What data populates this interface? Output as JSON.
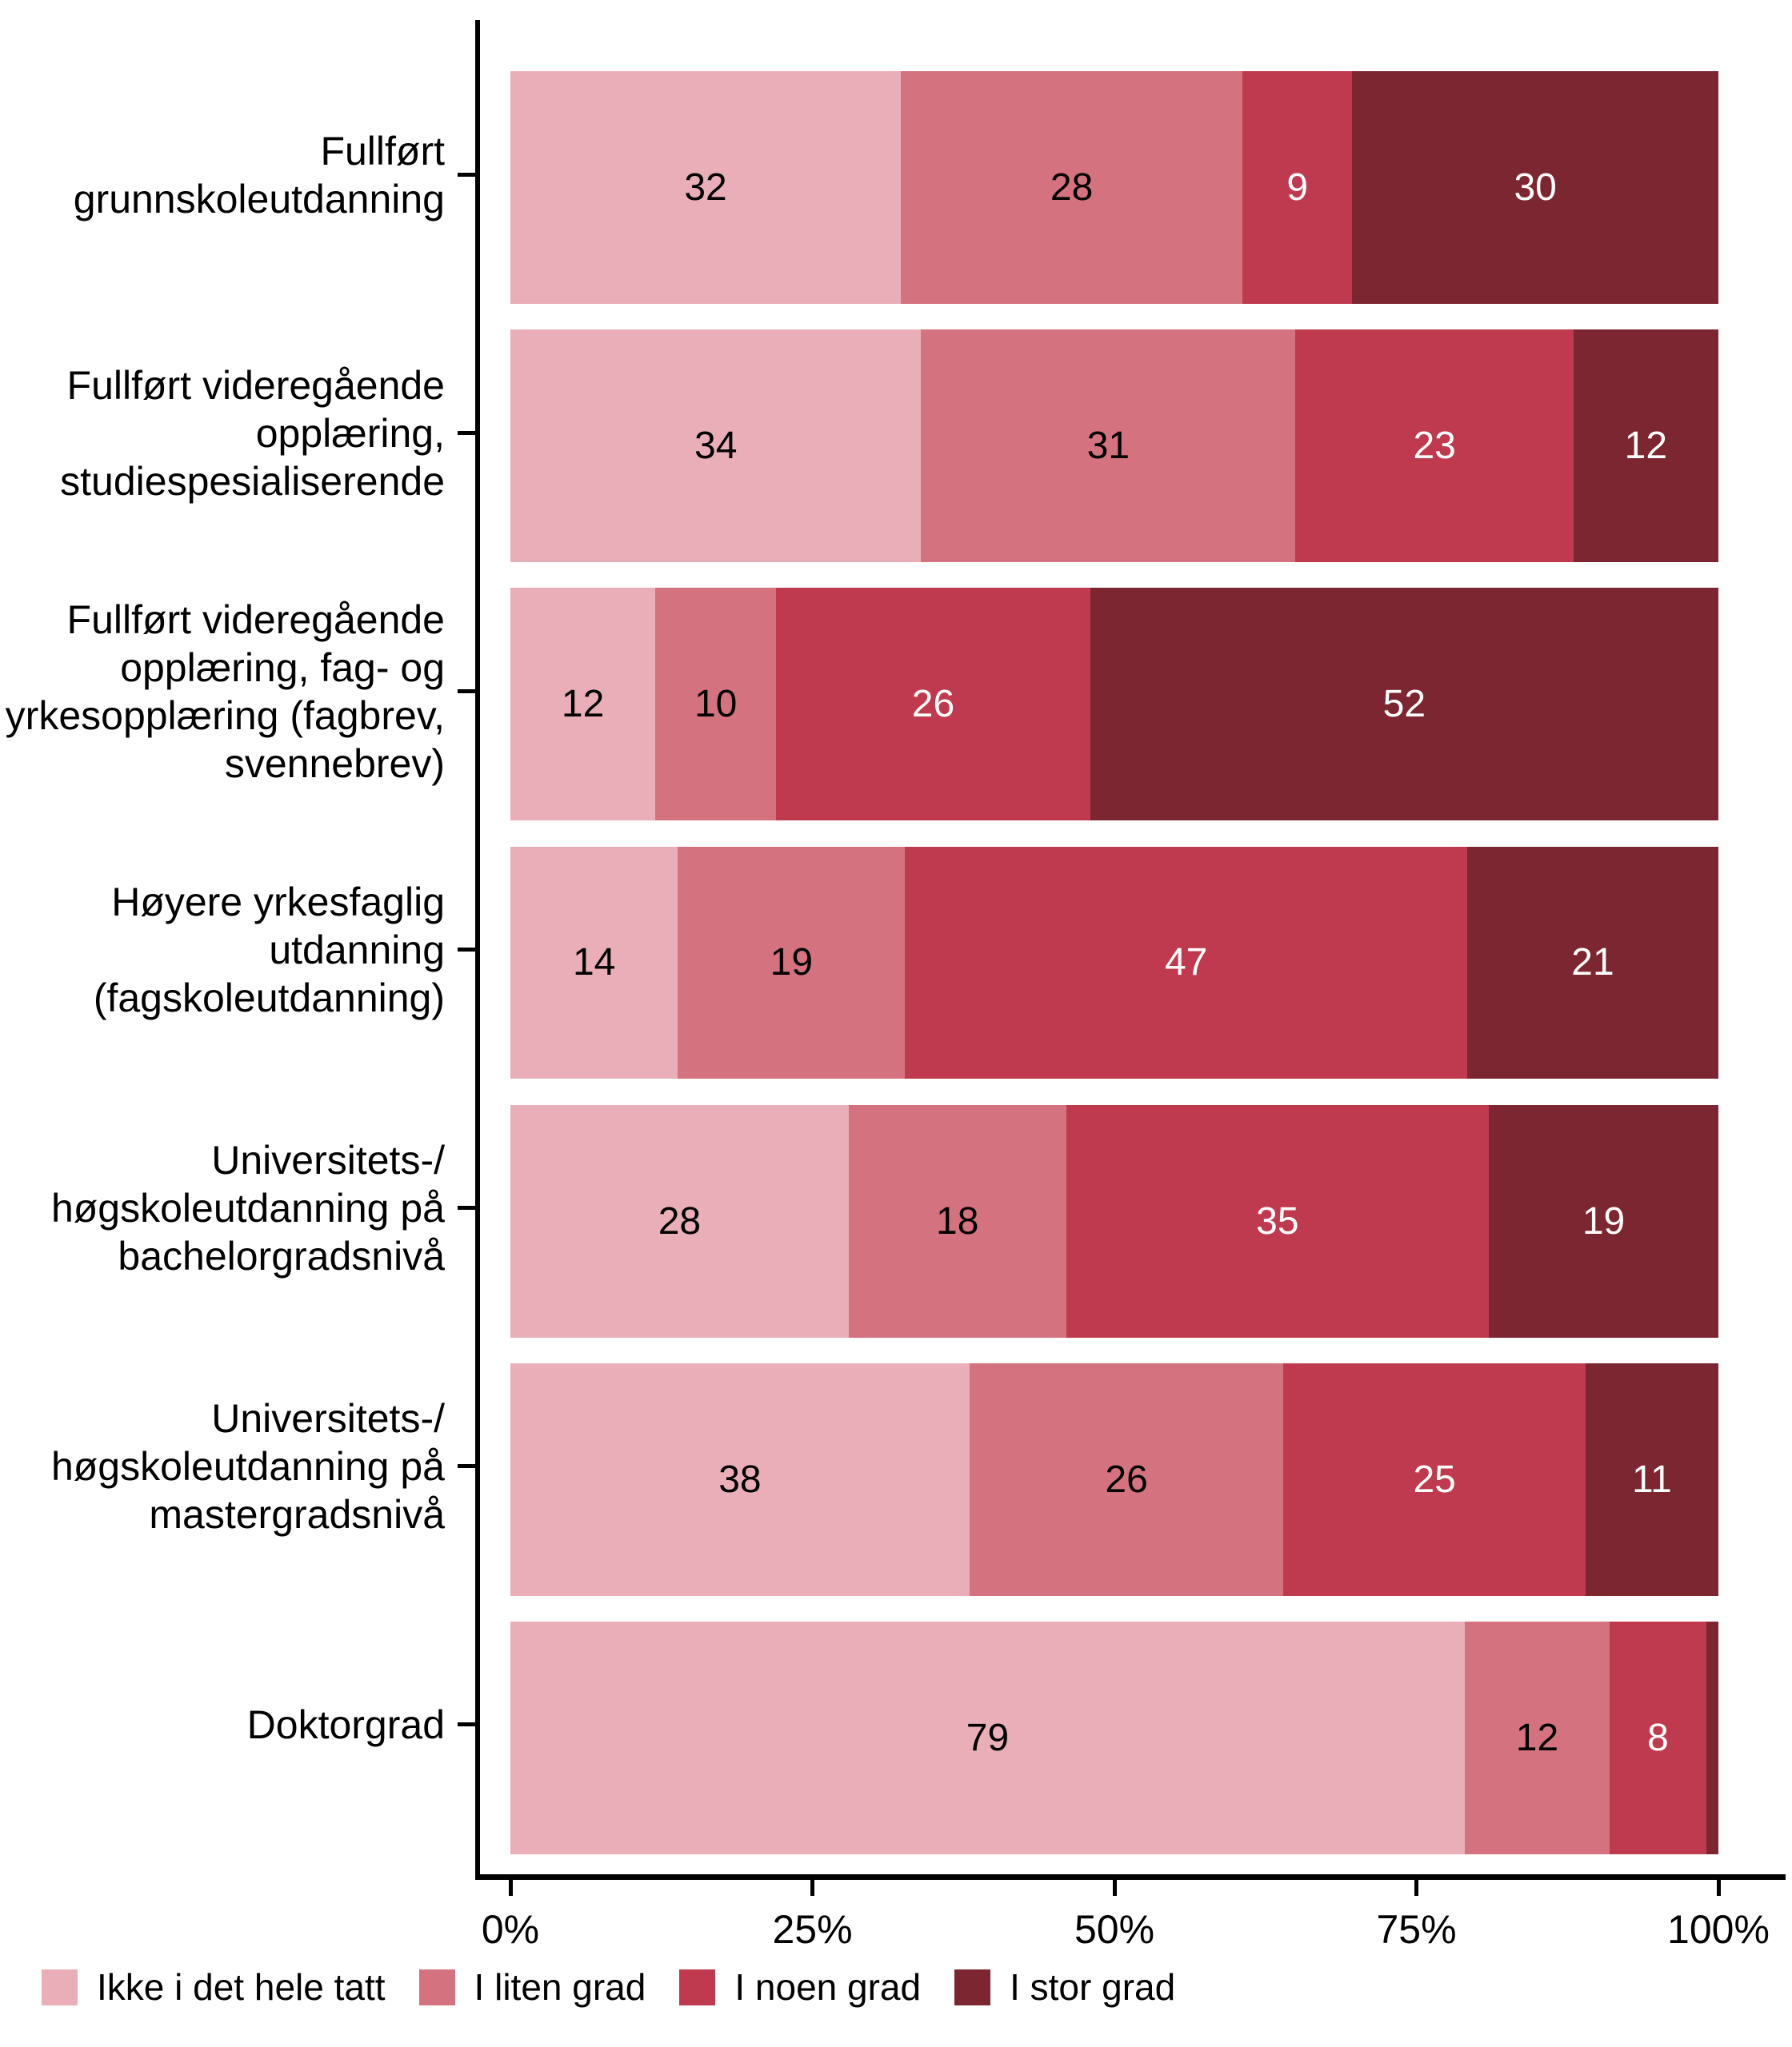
{
  "chart_data": {
    "type": "bar",
    "orientation": "horizontal",
    "stacked": true,
    "value_unit": "percent",
    "categories": [
      "Fullført\ngrunnskoleutdanning",
      "Fullført videregående\nopplæring,\nstudiespesialiserende",
      "Fullført videregående\nopplæring, fag- og\nyrkesopplæring (fagbrev,\nsvennebrev)",
      "Høyere yrkesfaglig\nutdanning\n(fagskoleutdanning)",
      "Universitets-/\nhøgskoleutdanning på\nbachelorgradsnivå",
      "Universitets-/\nhøgskoleutdanning på\nmastergradsnivå",
      "Doktorgrad"
    ],
    "series": [
      {
        "name": "Ikke i det hele tatt",
        "color": "#E9AEB7",
        "label_color": "#000000",
        "values": [
          32,
          34,
          12,
          14,
          28,
          38,
          79
        ]
      },
      {
        "name": "I liten grad",
        "color": "#D4737F",
        "label_color": "#000000",
        "values": [
          28,
          31,
          10,
          19,
          18,
          26,
          12
        ]
      },
      {
        "name": "I noen grad",
        "color": "#BF3A4F",
        "label_color": "#FFFFFF",
        "values": [
          9,
          23,
          26,
          47,
          35,
          25,
          8
        ]
      },
      {
        "name": "I stor grad",
        "color": "#7C2631",
        "label_color": "#FFFFFF",
        "values": [
          30,
          12,
          52,
          21,
          19,
          11,
          1
        ]
      }
    ],
    "min_value_for_label": 2,
    "x_axis": {
      "range": [
        0,
        100
      ],
      "ticks": [
        {
          "label": "0%",
          "value": 0
        },
        {
          "label": "25%",
          "value": 25
        },
        {
          "label": "50%",
          "value": 50
        },
        {
          "label": "75%",
          "value": 75
        },
        {
          "label": "100%",
          "value": 100
        }
      ]
    },
    "legend": {
      "position": "bottom-left",
      "items": [
        "Ikke i det hele tatt",
        "I liten grad",
        "I noen grad",
        "I stor grad"
      ]
    },
    "axis_color": "#000000",
    "background": "#FFFFFF"
  }
}
